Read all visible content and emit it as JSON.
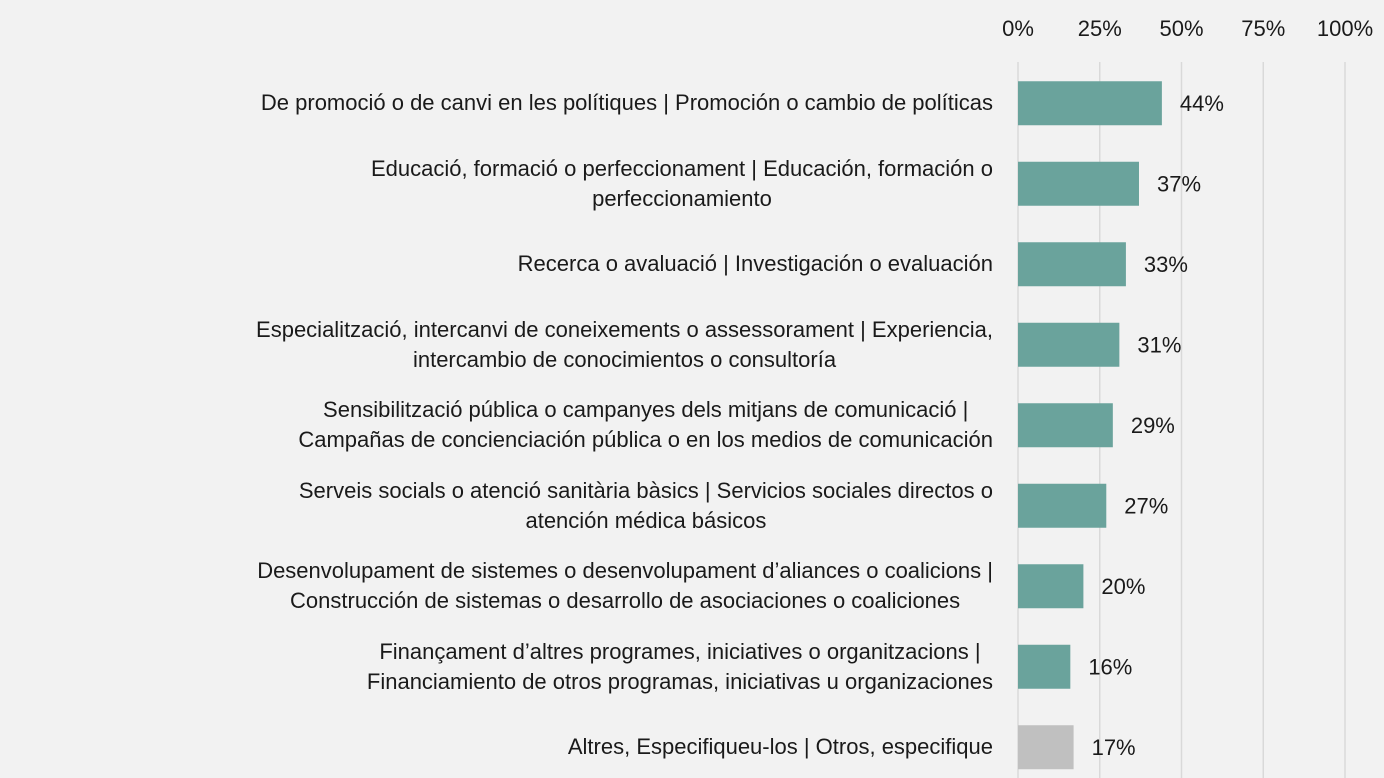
{
  "chart_data": {
    "type": "barh",
    "categories": [
      "De promoció o de canvi en les polítiques | Promoción o cambio de políticas",
      "Educació, formació o perfeccionament | Educación, formación o\nperfeccionamiento",
      "Recerca o avaluació | Investigación o evaluación",
      "Especialització, intercanvi de coneixements o assessorament | Experiencia,\nintercambio de conocimientos o consultoría",
      "Sensibilització pública o campanyes dels mitjans de comunicació  |\nCampañas de concienciación pública o en los medios de comunicación",
      "Serveis socials o atenció sanitària bàsics | Servicios sociales directos o\natención médica básicos",
      "Desenvolupament de sistemes o desenvolupament d’aliances o coalicions |\nConstrucción de sistemas o desarrollo de asociaciones o coaliciones",
      "Finançament d’altres programes, iniciatives o organitzacions |\nFinanciamiento de otros programas, iniciativas u organizaciones",
      "Altres, Especifiqueu-los | Otros, especifique"
    ],
    "values": [
      44,
      37,
      33,
      31,
      29,
      27,
      20,
      16,
      17
    ],
    "value_labels": [
      "44%",
      "37%",
      "33%",
      "31%",
      "29%",
      "27%",
      "20%",
      "16%",
      "17%"
    ],
    "colors": [
      "#6aa39c",
      "#6aa39c",
      "#6aa39c",
      "#6aa39c",
      "#6aa39c",
      "#6aa39c",
      "#6aa39c",
      "#6aa39c",
      "#c0c0c0"
    ],
    "xlim": [
      0,
      100
    ],
    "xticks": [
      {
        "value": 0,
        "label": "0%"
      },
      {
        "value": 25,
        "label": "25%"
      },
      {
        "value": 50,
        "label": "50%"
      },
      {
        "value": 75,
        "label": "75%"
      },
      {
        "value": 100,
        "label": "100%"
      }
    ],
    "grid": true
  }
}
